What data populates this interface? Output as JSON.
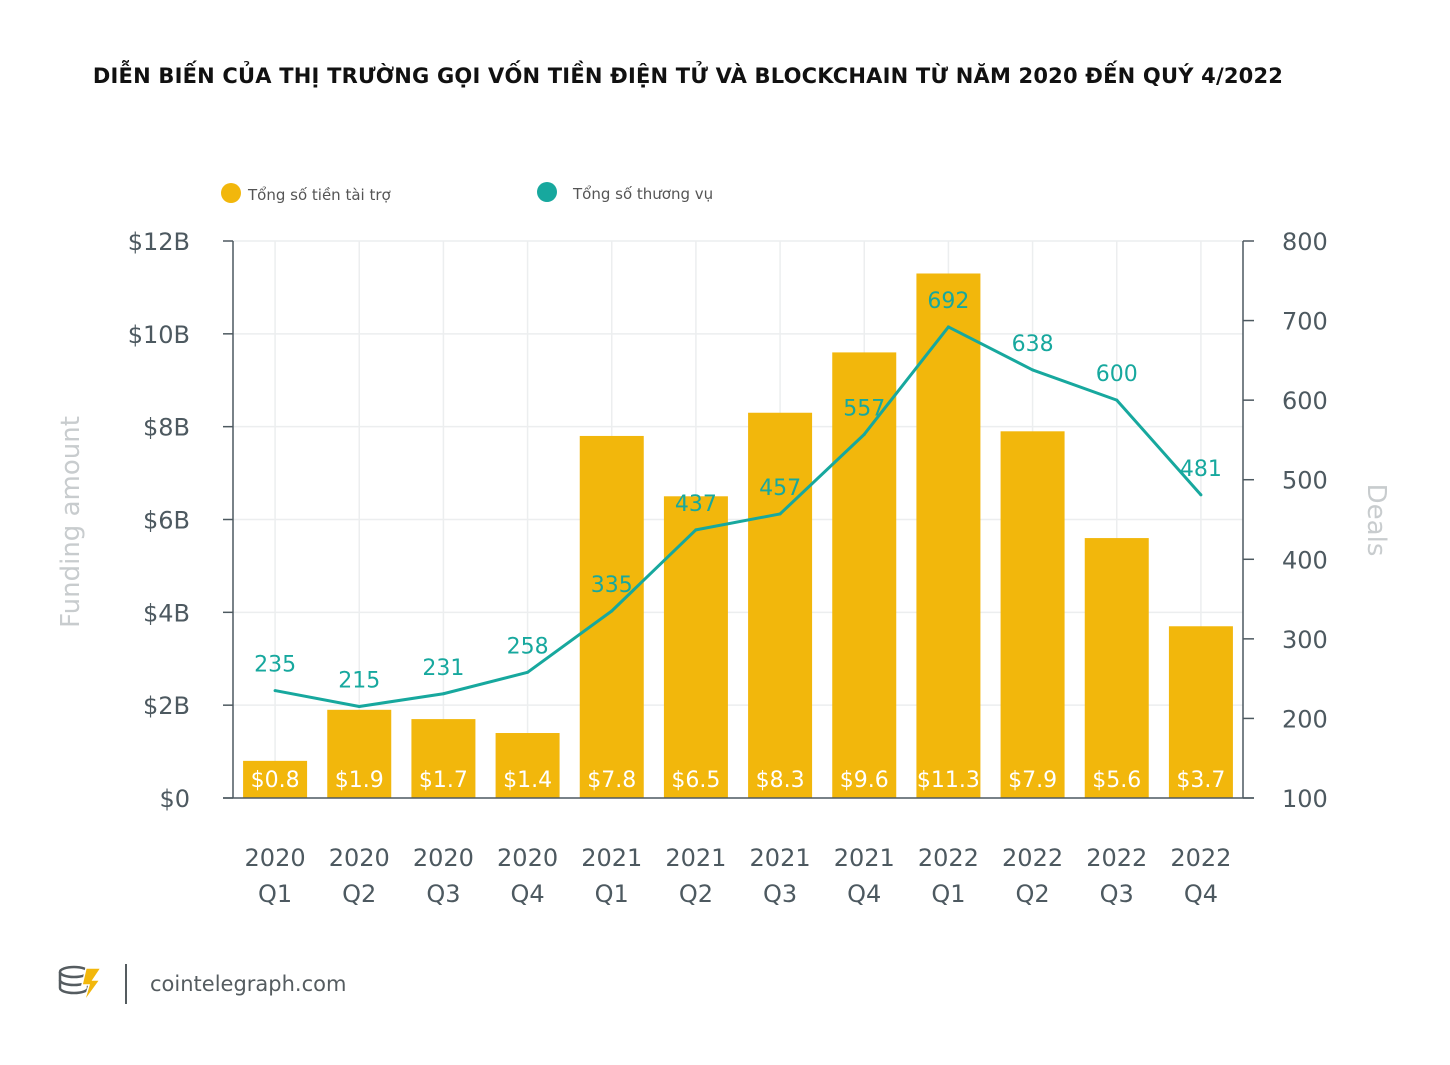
{
  "chart_data": {
    "type": "bar",
    "title": "DIỄN BIẾN CỦA THỊ TRƯỜNG GỌI VỐN TIỀN ĐIỆN TỬ VÀ BLOCKCHAIN TỪ NĂM 2020 ĐẾN QUÝ 4/2022",
    "categories": [
      [
        "2020",
        "Q1"
      ],
      [
        "2020",
        "Q2"
      ],
      [
        "2020",
        "Q3"
      ],
      [
        "2020",
        "Q4"
      ],
      [
        "2021",
        "Q1"
      ],
      [
        "2021",
        "Q2"
      ],
      [
        "2021",
        "Q3"
      ],
      [
        "2021",
        "Q4"
      ],
      [
        "2022",
        "Q1"
      ],
      [
        "2022",
        "Q2"
      ],
      [
        "2022",
        "Q3"
      ],
      [
        "2022",
        "Q4"
      ]
    ],
    "series": [
      {
        "name": "Tổng số tiền tài trợ",
        "type": "bar",
        "axis": "left",
        "values": [
          0.8,
          1.9,
          1.7,
          1.4,
          7.8,
          6.5,
          8.3,
          9.6,
          11.3,
          7.9,
          5.6,
          3.7
        ],
        "labels": [
          "$0.8",
          "$1.9",
          "$1.7",
          "$1.4",
          "$7.8",
          "$6.5",
          "$8.3",
          "$9.6",
          "$11.3",
          "$7.9",
          "$5.6",
          "$3.7"
        ],
        "color": "#f2b70c"
      },
      {
        "name": "Tổng số thương vụ",
        "type": "line",
        "axis": "right",
        "values": [
          235,
          215,
          231,
          258,
          335,
          437,
          457,
          557,
          692,
          638,
          600,
          481
        ],
        "color": "#17a89e"
      }
    ],
    "y_left": {
      "label": "Funding amount",
      "ylim": [
        0,
        12
      ],
      "ticks": [
        0,
        2,
        4,
        6,
        8,
        10,
        12
      ],
      "tick_labels": [
        "$0",
        "$2B",
        "$4B",
        "$6B",
        "$8B",
        "$10B",
        "$12B"
      ]
    },
    "y_right": {
      "label": "Deals",
      "ylim": [
        100,
        800
      ],
      "ticks": [
        100,
        200,
        300,
        400,
        500,
        600,
        700,
        800
      ],
      "tick_labels": [
        "100",
        "200",
        "300",
        "400",
        "500",
        "600",
        "700",
        "800"
      ]
    },
    "legend": "top-left",
    "grid": true
  },
  "brand": {
    "text": "cointelegraph.com",
    "logo_icon": "cointelegraph-logo-icon"
  }
}
